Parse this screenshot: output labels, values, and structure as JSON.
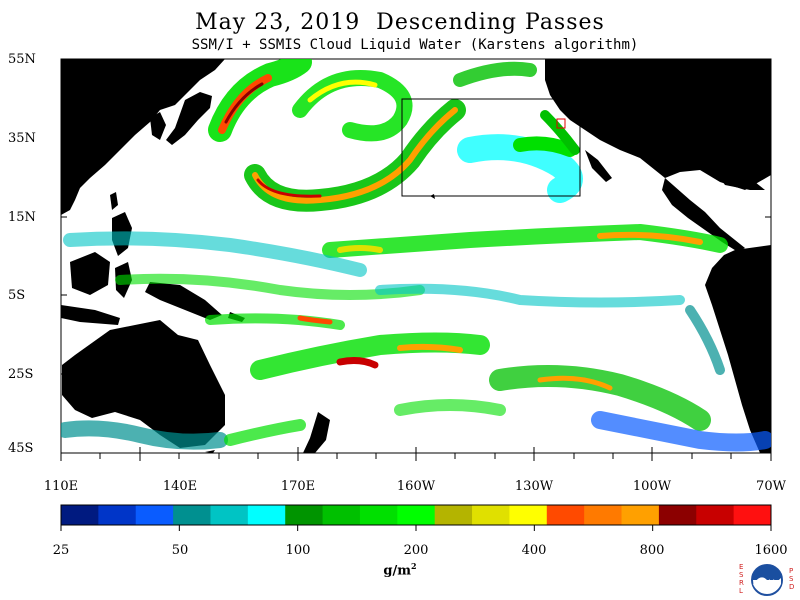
{
  "title": "May 23, 2019  Descending Passes",
  "subtitle": "SSM/I + SSMIS Cloud Liquid Water (Karstens algorithm)",
  "lat_labels": [
    "55N",
    "35N",
    "15N",
    "5S",
    "25S",
    "45S"
  ],
  "lon_labels": [
    "110E",
    "140E",
    "170E",
    "160W",
    "130W",
    "100W",
    "70W"
  ],
  "colorbar": {
    "labels": [
      "25",
      "50",
      "100",
      "200",
      "400",
      "800",
      "1600"
    ],
    "unit_base": "g/m",
    "unit_exp": "2",
    "colors": [
      "#001a80",
      "#0035c8",
      "#0a5cff",
      "#009090",
      "#00c4c4",
      "#00ffff",
      "#009400",
      "#00c000",
      "#00e000",
      "#00ff00",
      "#b4b400",
      "#e0e000",
      "#ffff00",
      "#ff4a00",
      "#ff7a00",
      "#ffa000",
      "#8c0000",
      "#c80000",
      "#ff1010"
    ]
  },
  "map_region": {
    "lon_min": 110,
    "lon_max": 290,
    "lat_min": -45,
    "lat_max": 55
  },
  "logo": {
    "left_text": "ESRL",
    "right_text": "PSD",
    "center_text": "NOAA"
  }
}
